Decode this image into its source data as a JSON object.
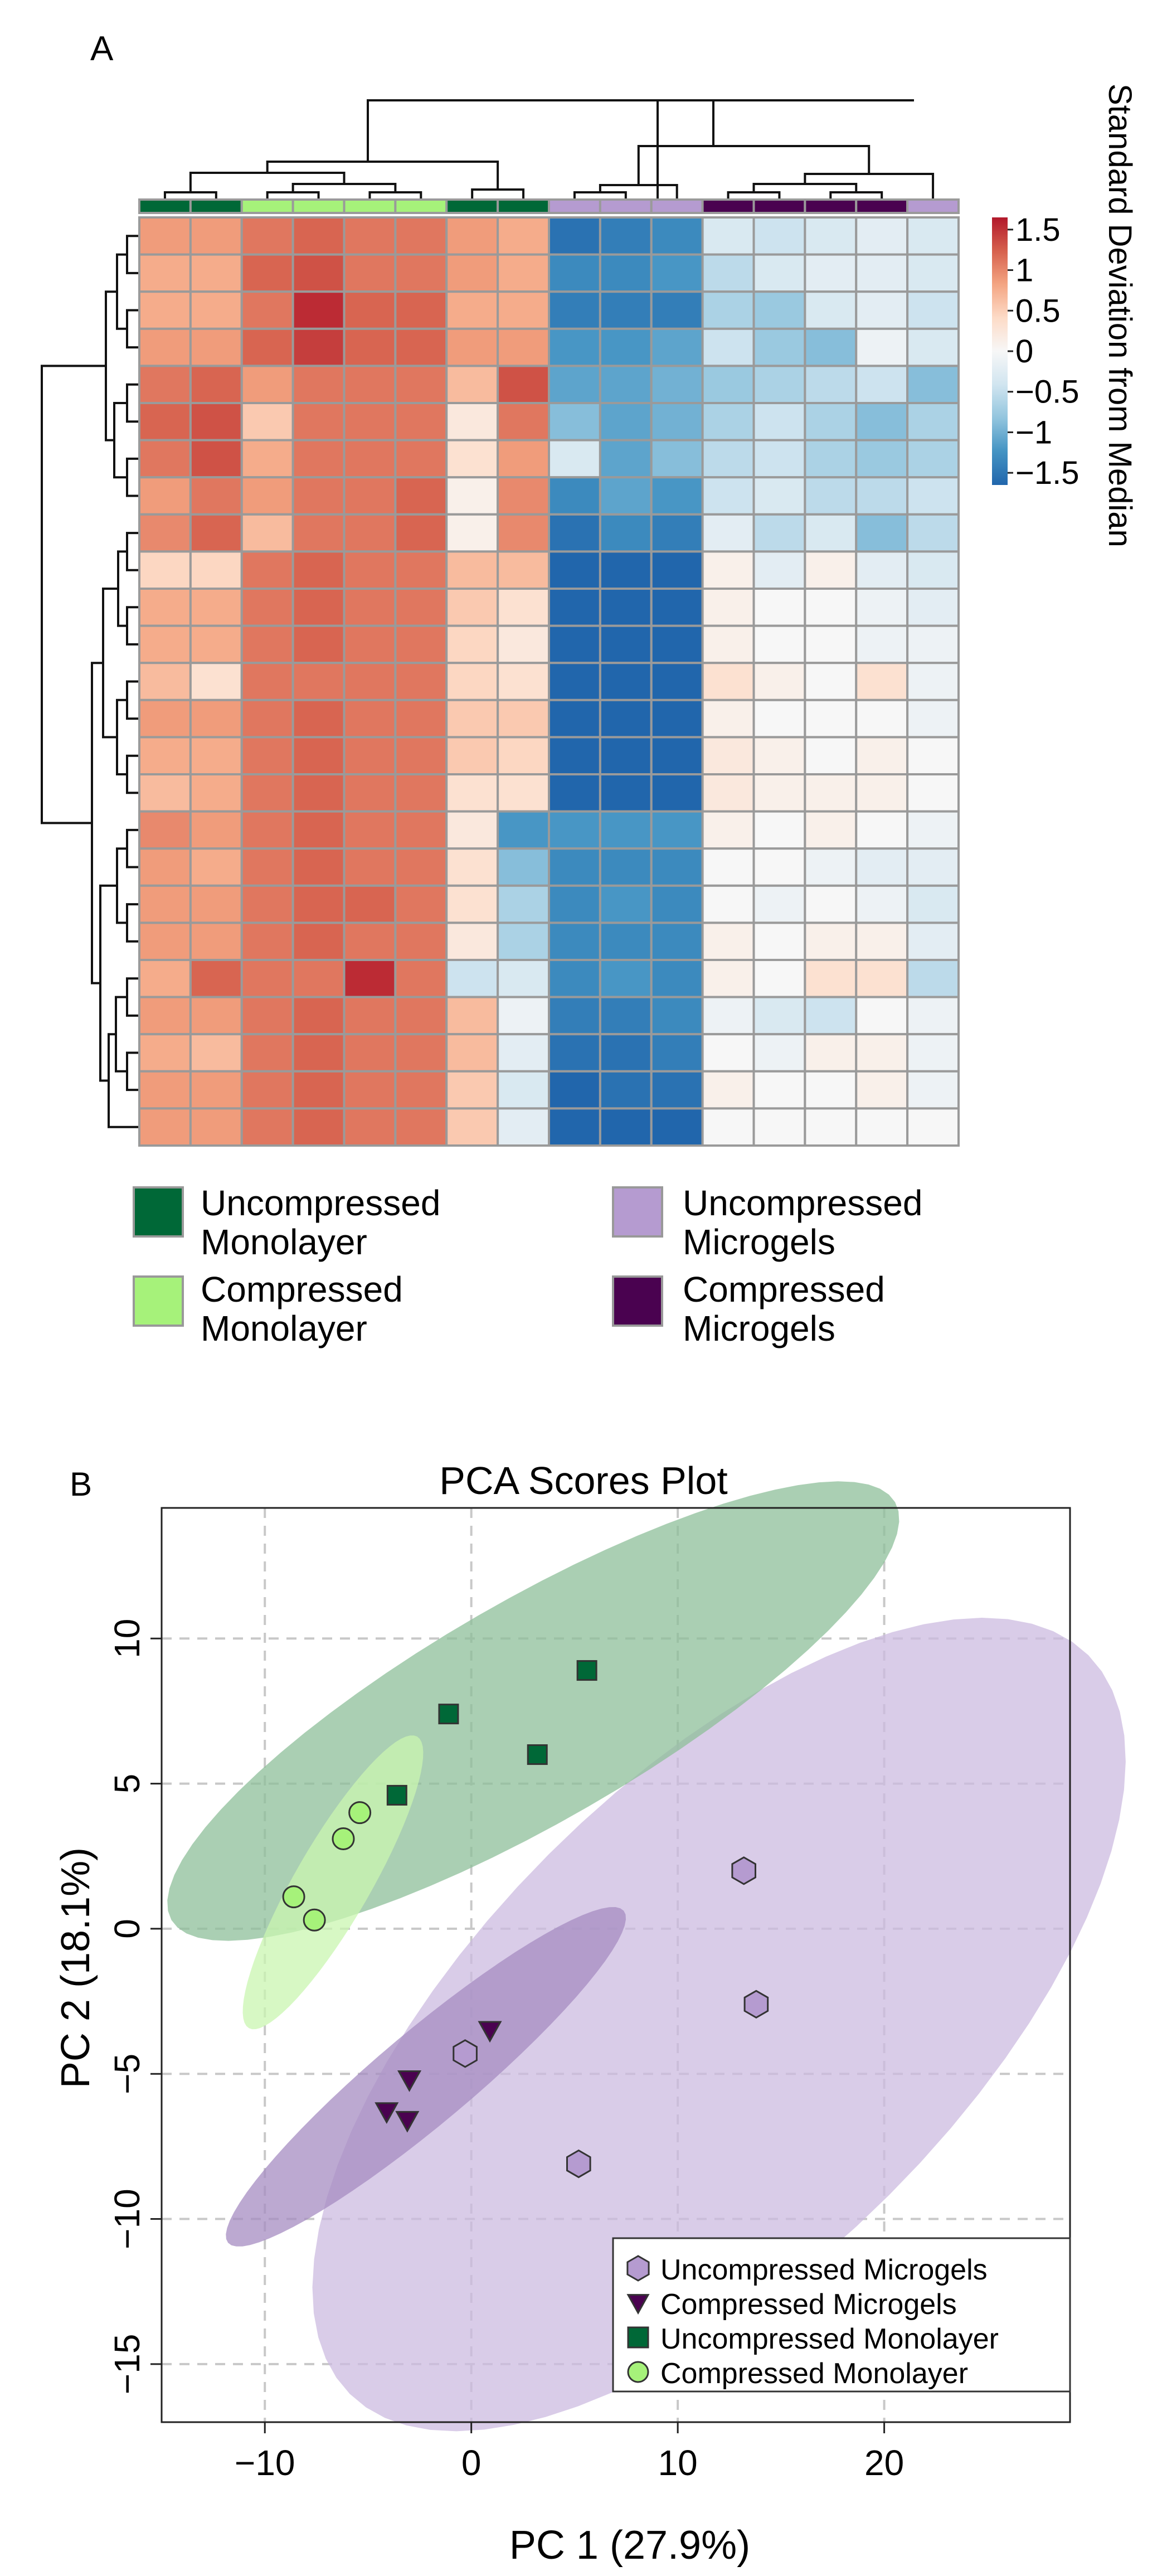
{
  "panel_a": {
    "label": "A",
    "colorbar": {
      "title": "Standard Deviation from Median",
      "ticks": [
        "1.5",
        "1",
        "0.5",
        "0",
        "−0.5",
        "−1",
        "−1.5"
      ],
      "tick_values": [
        1.5,
        1,
        0.5,
        0,
        -0.5,
        -1,
        -1.5
      ],
      "colors": [
        "#2166ac",
        "#4393c3",
        "#92c5de",
        "#d1e5f0",
        "#f7f7f7",
        "#fddbc7",
        "#f4a582",
        "#d6604d",
        "#b2182b"
      ]
    },
    "legend": [
      {
        "label": "Uncompressed Monolayer",
        "line1": "Uncompressed",
        "line2": "Monolayer",
        "color": "#006837"
      },
      {
        "label": "Uncompressed Microgels",
        "line1": "Uncompressed",
        "line2": "Microgels",
        "color": "#b59bd0"
      },
      {
        "label": "Compressed Monolayer",
        "line1": "Compressed",
        "line2": "Monolayer",
        "color": "#a6f27a"
      },
      {
        "label": "Compressed Microgels",
        "line1": "Compressed",
        "line2": "Microgels",
        "color": "#4a0250"
      }
    ]
  },
  "panel_b": {
    "label": "B",
    "legend": [
      {
        "label": "Uncompressed Microgels",
        "marker": "hexagon",
        "color": "#b59bd0"
      },
      {
        "label": "Compressed Microgels",
        "marker": "triangle-down",
        "color": "#4a0250"
      },
      {
        "label": "Uncompressed Monolayer",
        "marker": "square",
        "color": "#006837"
      },
      {
        "label": "Compressed Monolayer",
        "marker": "circle",
        "color": "#a6f27a"
      }
    ]
  },
  "chart_data": [
    {
      "type": "heatmap",
      "title": "",
      "colorbar_label": "Standard Deviation from Median",
      "value_range": [
        -1.5,
        1.5
      ],
      "column_groups": [
        "Uncompressed Monolayer",
        "Uncompressed Monolayer",
        "Compressed Monolayer",
        "Compressed Monolayer",
        "Compressed Monolayer",
        "Compressed Monolayer",
        "Uncompressed Monolayer",
        "Uncompressed Monolayer",
        "Uncompressed Microgels",
        "Uncompressed Microgels",
        "Uncompressed Microgels",
        "Compressed Microgels",
        "Compressed Microgels",
        "Compressed Microgels",
        "Compressed Microgels",
        "Uncompressed Microgels"
      ],
      "group_colors": {
        "Uncompressed Monolayer": "#006837",
        "Compressed Monolayer": "#a6f27a",
        "Uncompressed Microgels": "#b59bd0",
        "Compressed Microgels": "#4a0250"
      },
      "values": [
        [
          0.8,
          0.8,
          1.0,
          1.1,
          1.0,
          1.0,
          0.8,
          0.7,
          -1.4,
          -1.3,
          -1.2,
          -0.3,
          -0.4,
          -0.3,
          -0.2,
          -0.3
        ],
        [
          0.7,
          0.7,
          1.1,
          1.2,
          1.0,
          1.0,
          0.8,
          0.7,
          -1.2,
          -1.2,
          -1.1,
          -0.5,
          -0.3,
          -0.2,
          -0.2,
          -0.3
        ],
        [
          0.7,
          0.7,
          1.0,
          1.4,
          1.1,
          1.1,
          0.7,
          0.7,
          -1.3,
          -1.3,
          -1.3,
          -0.6,
          -0.7,
          -0.3,
          -0.2,
          -0.4
        ],
        [
          0.8,
          0.8,
          1.1,
          1.3,
          1.1,
          1.1,
          0.8,
          0.8,
          -1.1,
          -1.1,
          -1.0,
          -0.4,
          -0.7,
          -0.8,
          -0.1,
          -0.3
        ],
        [
          1.0,
          1.1,
          0.8,
          1.0,
          1.0,
          1.0,
          0.6,
          1.2,
          -1.0,
          -1.0,
          -0.9,
          -0.7,
          -0.6,
          -0.5,
          -0.4,
          -0.8
        ],
        [
          1.1,
          1.2,
          0.5,
          1.0,
          1.0,
          1.0,
          0.2,
          1.0,
          -0.8,
          -1.0,
          -0.9,
          -0.6,
          -0.4,
          -0.6,
          -0.8,
          -0.6
        ],
        [
          1.0,
          1.2,
          0.7,
          1.0,
          1.0,
          1.0,
          0.3,
          0.8,
          -0.3,
          -1.0,
          -0.8,
          -0.5,
          -0.4,
          -0.6,
          -0.7,
          -0.6
        ],
        [
          0.8,
          1.0,
          0.8,
          1.0,
          1.0,
          1.1,
          0.1,
          0.9,
          -1.2,
          -1.0,
          -1.1,
          -0.4,
          -0.3,
          -0.5,
          -0.5,
          -0.4
        ],
        [
          0.9,
          1.1,
          0.6,
          1.0,
          1.0,
          1.1,
          0.1,
          0.9,
          -1.4,
          -1.2,
          -1.3,
          -0.2,
          -0.5,
          -0.3,
          -0.8,
          -0.5
        ],
        [
          0.4,
          0.4,
          1.0,
          1.1,
          1.0,
          1.0,
          0.6,
          0.6,
          -1.5,
          -1.5,
          -1.5,
          0.1,
          -0.2,
          0.1,
          -0.2,
          -0.3
        ],
        [
          0.7,
          0.7,
          1.0,
          1.1,
          1.0,
          1.0,
          0.5,
          0.3,
          -1.6,
          -1.6,
          -1.6,
          0.1,
          0.0,
          0.0,
          -0.1,
          -0.2
        ],
        [
          0.7,
          0.7,
          1.0,
          1.1,
          1.0,
          1.0,
          0.4,
          0.2,
          -1.6,
          -1.6,
          -1.6,
          0.1,
          0.0,
          0.0,
          -0.1,
          -0.1
        ],
        [
          0.6,
          0.3,
          1.0,
          1.0,
          1.0,
          1.0,
          0.4,
          0.3,
          -1.7,
          -1.6,
          -1.6,
          0.3,
          0.1,
          0.0,
          0.3,
          -0.1
        ],
        [
          0.8,
          0.8,
          1.0,
          1.1,
          1.0,
          1.0,
          0.5,
          0.5,
          -1.7,
          -1.7,
          -1.7,
          0.1,
          0.0,
          0.0,
          0.0,
          -0.1
        ],
        [
          0.7,
          0.7,
          1.0,
          1.1,
          1.0,
          1.0,
          0.5,
          0.4,
          -1.7,
          -1.7,
          -1.7,
          0.2,
          0.1,
          0.0,
          0.1,
          0.0
        ],
        [
          0.6,
          0.7,
          1.0,
          1.1,
          1.0,
          1.0,
          0.3,
          0.3,
          -1.7,
          -1.7,
          -1.7,
          0.2,
          0.1,
          0.1,
          0.1,
          0.0
        ],
        [
          0.9,
          0.8,
          1.0,
          1.1,
          1.0,
          1.0,
          0.2,
          -1.1,
          -1.1,
          -1.1,
          -1.1,
          0.1,
          0.0,
          0.1,
          0.0,
          -0.1
        ],
        [
          0.8,
          0.7,
          1.0,
          1.1,
          1.0,
          1.0,
          0.3,
          -0.8,
          -1.2,
          -1.2,
          -1.2,
          0.0,
          0.0,
          -0.1,
          -0.2,
          -0.2
        ],
        [
          0.8,
          0.8,
          1.0,
          1.1,
          1.1,
          1.0,
          0.3,
          -0.6,
          -1.2,
          -1.1,
          -1.2,
          0.0,
          -0.1,
          0.0,
          -0.1,
          -0.3
        ],
        [
          0.8,
          0.8,
          1.0,
          1.1,
          1.0,
          1.0,
          0.2,
          -0.6,
          -1.2,
          -1.2,
          -1.2,
          0.1,
          0.0,
          0.1,
          0.1,
          -0.2
        ],
        [
          0.7,
          1.1,
          1.0,
          1.0,
          1.4,
          1.0,
          -0.4,
          -0.3,
          -1.2,
          -1.1,
          -1.2,
          0.1,
          0.0,
          0.3,
          0.3,
          -0.5
        ],
        [
          0.8,
          0.8,
          1.0,
          1.1,
          1.0,
          1.0,
          0.6,
          -0.1,
          -1.3,
          -1.3,
          -1.2,
          -0.1,
          -0.3,
          -0.4,
          0.0,
          -0.1
        ],
        [
          0.7,
          0.6,
          1.0,
          1.1,
          1.0,
          1.0,
          0.6,
          -0.2,
          -1.4,
          -1.4,
          -1.3,
          0.0,
          -0.1,
          0.1,
          0.1,
          -0.1
        ],
        [
          0.8,
          0.8,
          1.0,
          1.1,
          1.0,
          1.0,
          0.5,
          -0.3,
          -1.5,
          -1.4,
          -1.4,
          0.1,
          0.0,
          0.0,
          0.1,
          -0.1
        ],
        [
          0.8,
          0.8,
          1.0,
          1.1,
          1.0,
          1.0,
          0.5,
          -0.2,
          -1.5,
          -1.5,
          -1.5,
          0.0,
          0.0,
          0.0,
          0.0,
          0.0
        ]
      ]
    },
    {
      "type": "scatter",
      "title": "PCA Scores Plot",
      "xlabel": "PC 1 (27.9%)",
      "ylabel": "PC 2 (18.1%)",
      "xlim": [
        -15,
        29
      ],
      "ylim": [
        -17,
        14.5
      ],
      "xticks": [
        -10,
        0,
        10,
        20
      ],
      "yticks": [
        -15,
        -10,
        -5,
        0,
        5,
        10
      ],
      "xtick_labels": [
        "−10",
        "0",
        "10",
        "20"
      ],
      "ytick_labels": [
        "−15",
        "−10",
        "−5",
        "0",
        "5",
        "10"
      ],
      "grid": true,
      "legend_position": "bottom-right",
      "series": [
        {
          "name": "Uncompressed Microgels",
          "marker": "hexagon",
          "color": "#b59bd0",
          "points": [
            [
              13.2,
              2.0
            ],
            [
              13.8,
              -2.6
            ],
            [
              5.2,
              -8.1
            ],
            [
              -0.3,
              -4.3
            ]
          ],
          "ellipse": {
            "center": [
              12.0,
              -3.3
            ],
            "semi_major": 18.0,
            "semi_minor": 8.3,
            "angle_deg": 45,
            "color": "#ccbbe0"
          }
        },
        {
          "name": "Compressed Microgels",
          "marker": "triangle-down",
          "color": "#4a0250",
          "points": [
            [
              -3.0,
              -5.2
            ],
            [
              0.9,
              -3.5
            ],
            [
              -4.1,
              -6.3
            ],
            [
              -3.1,
              -6.6
            ]
          ],
          "ellipse": {
            "center": [
              -2.2,
              -5.1
            ],
            "semi_major": 8.9,
            "semi_minor": 1.6,
            "angle_deg": 40,
            "color": "#a68cc2"
          }
        },
        {
          "name": "Uncompressed Monolayer",
          "marker": "square",
          "color": "#006837",
          "points": [
            [
              5.6,
              8.9
            ],
            [
              -1.1,
              7.4
            ],
            [
              3.2,
              6.0
            ],
            [
              -3.6,
              4.6
            ]
          ],
          "ellipse": {
            "center": [
              3.0,
              7.5
            ],
            "semi_major": 14.4,
            "semi_minor": 3.8,
            "angle_deg": 30,
            "color": "#8dbf9a"
          }
        },
        {
          "name": "Compressed Monolayer",
          "marker": "circle",
          "color": "#a6f27a",
          "points": [
            [
              -5.4,
              4.0
            ],
            [
              -6.2,
              3.1
            ],
            [
              -8.6,
              1.1
            ],
            [
              -7.6,
              0.3
            ]
          ],
          "ellipse": {
            "center": [
              -6.7,
              1.6
            ],
            "semi_major": 5.8,
            "semi_minor": 1.3,
            "angle_deg": 60,
            "color": "#c9f5b0"
          }
        }
      ]
    }
  ]
}
